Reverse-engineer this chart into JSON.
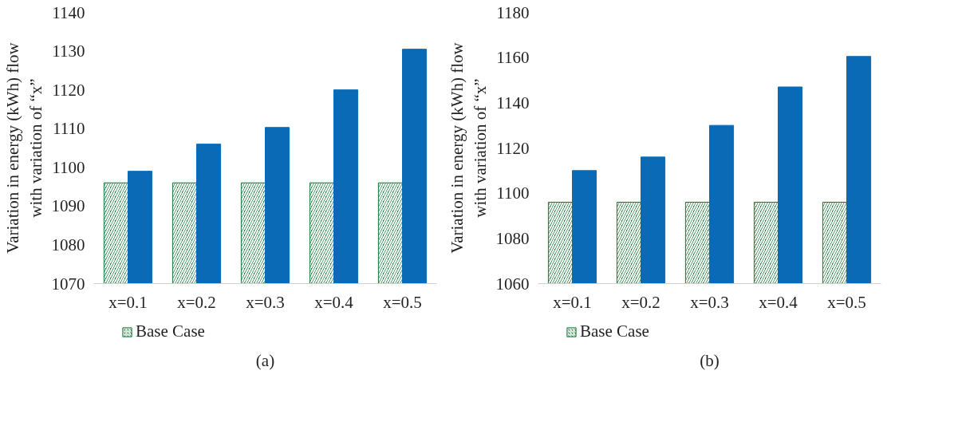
{
  "chart_data": [
    {
      "type": "bar",
      "categories": [
        "x=0.1",
        "x=0.2",
        "x=0.3",
        "x=0.4",
        "x=0.5"
      ],
      "ylabel": "Variation in energy (kWh) flow\nwith variation of “x”",
      "ylim": [
        1070,
        1140
      ],
      "yticks": [
        1070,
        1080,
        1090,
        1100,
        1110,
        1120,
        1130,
        1140
      ],
      "grid": false,
      "legend": "bottom",
      "annotations": [
        "(a)"
      ],
      "series": [
        {
          "name": "Base Case",
          "color": "#1a7a3a",
          "values": [
            1096,
            1096,
            1096,
            1096,
            1096
          ]
        },
        {
          "color": "#0a6ab6",
          "values": [
            1099,
            1106,
            1110.3,
            1120,
            1130.5
          ]
        }
      ]
    },
    {
      "type": "bar",
      "categories": [
        "x=0.1",
        "x=0.2",
        "x=0.3",
        "x=0.4",
        "x=0.5"
      ],
      "ylabel": "Variation in energy (kWh) flow\nwith variation of “x”",
      "ylim": [
        1060,
        1180
      ],
      "yticks": [
        1060,
        1080,
        1100,
        1120,
        1140,
        1160,
        1180
      ],
      "grid": false,
      "legend": "bottom",
      "annotations": [
        "(b)"
      ],
      "series": [
        {
          "name": "Base Case",
          "color": "#1a7a3a",
          "values": [
            1096,
            1096,
            1096,
            1096,
            1096
          ]
        },
        {
          "color": "#0a6ab6",
          "values": [
            1110,
            1116,
            1130,
            1147,
            1160.5
          ]
        }
      ]
    }
  ]
}
